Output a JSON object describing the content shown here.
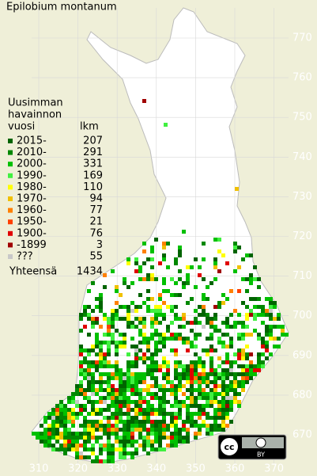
{
  "title": "Epilobium montanum",
  "legend": {
    "heading": [
      "Uusimman",
      "havainnon",
      "vuosi"
    ],
    "count_header": "lkm",
    "items": [
      {
        "label": "2015-",
        "count": 207,
        "color": "#006400"
      },
      {
        "label": "2010-",
        "count": 291,
        "color": "#008800"
      },
      {
        "label": "2000-",
        "count": 331,
        "color": "#00c000"
      },
      {
        "label": "1990-",
        "count": 169,
        "color": "#40f040"
      },
      {
        "label": "1980-",
        "count": 110,
        "color": "#ffff00"
      },
      {
        "label": "1970-",
        "count": 94,
        "color": "#f0c000"
      },
      {
        "label": "1960-",
        "count": 77,
        "color": "#ff8000"
      },
      {
        "label": "1950-",
        "count": 21,
        "color": "#ff4000"
      },
      {
        "label": "1900-",
        "count": 76,
        "color": "#e00000"
      },
      {
        "label": "-1899",
        "count": 3,
        "color": "#a00000"
      },
      {
        "label": "???",
        "count": 55,
        "color": "#c8c8c8"
      }
    ],
    "total_label": "Yhteensä",
    "total": 1434
  },
  "x_ticks": [
    310,
    320,
    330,
    340,
    350,
    360,
    370
  ],
  "y_ticks": [
    670,
    680,
    690,
    700,
    710,
    720,
    730,
    740,
    750,
    760,
    770
  ],
  "license_badge": {
    "icon": "cc",
    "label": "BY"
  }
}
